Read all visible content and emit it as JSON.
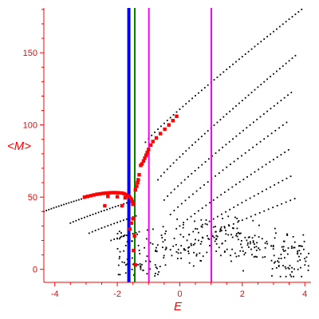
{
  "chart_data": {
    "type": "scatter",
    "xlabel": "E",
    "ylabel": "<M>",
    "xlim": [
      -4.35,
      4.2
    ],
    "ylim": [
      -9,
      181
    ],
    "xticks": [
      -4,
      -2,
      0,
      2,
      4
    ],
    "yticks": [
      0,
      50,
      100,
      150
    ],
    "tick_labels_x": [
      "-4",
      "-2",
      "0",
      "2",
      "4"
    ],
    "tick_labels_y": [
      "0",
      "50",
      "100",
      "150"
    ],
    "grid": false,
    "colors": {
      "axis": "#ff0000",
      "labels": "#ff0000",
      "black_points": "#000000",
      "red_points": "#ff0000",
      "line_blue": "#0000ff",
      "line_green": "#008000",
      "line_magenta": "#ff00ff"
    },
    "vertical_lines": [
      {
        "x": -1.63,
        "color": "#0000ff",
        "width": 4
      },
      {
        "x": -1.44,
        "color": "#008000",
        "width": 2
      },
      {
        "x": -0.99,
        "color": "#ff00ff",
        "width": 2
      },
      {
        "x": 1.01,
        "color": "#ff00ff",
        "width": 2
      }
    ],
    "black_branches": [
      {
        "x0": -4.35,
        "x1": -2.8,
        "y0": 40,
        "y1": 51,
        "step": 0.08
      },
      {
        "x0": -3.5,
        "x1": -1.7,
        "y0": 32,
        "y1": 46,
        "step": 0.09
      },
      {
        "x0": -2.9,
        "x1": -1.4,
        "y0": 25,
        "y1": 37,
        "step": 0.1
      },
      {
        "x0": -2.2,
        "x1": -1.3,
        "y0": 20,
        "y1": 26,
        "step": 0.1
      },
      {
        "x0": -1.1,
        "x1": 3.9,
        "y0": 88,
        "y1": 180,
        "step": 0.1
      },
      {
        "x0": -0.7,
        "x1": 3.7,
        "y0": 62,
        "y1": 148,
        "step": 0.1
      },
      {
        "x0": -0.5,
        "x1": 3.6,
        "y0": 48,
        "y1": 123,
        "step": 0.11
      },
      {
        "x0": -0.3,
        "x1": 3.5,
        "y0": 38,
        "y1": 103,
        "step": 0.12
      },
      {
        "x0": 0.0,
        "x1": 3.5,
        "y0": 30,
        "y1": 83,
        "step": 0.12
      },
      {
        "x0": 0.3,
        "x1": 3.6,
        "y0": 24,
        "y1": 65,
        "step": 0.13
      },
      {
        "x0": 0.6,
        "x1": 3.8,
        "y0": 20,
        "y1": 50,
        "step": 0.14
      }
    ],
    "black_cloud": {
      "x0": -2.0,
      "x1": 4.15,
      "y0": -5,
      "y1": 45,
      "count": 320,
      "seed": 7
    },
    "red_points": [
      {
        "x": -3.05,
        "y": 50
      },
      {
        "x": -2.95,
        "y": 50.5
      },
      {
        "x": -2.85,
        "y": 51
      },
      {
        "x": -2.75,
        "y": 51.5
      },
      {
        "x": -2.65,
        "y": 52
      },
      {
        "x": -2.55,
        "y": 52.3
      },
      {
        "x": -2.45,
        "y": 52.6
      },
      {
        "x": -2.35,
        "y": 52.8
      },
      {
        "x": -2.25,
        "y": 53
      },
      {
        "x": -2.15,
        "y": 53.1
      },
      {
        "x": -2.05,
        "y": 53.1
      },
      {
        "x": -1.95,
        "y": 53
      },
      {
        "x": -1.85,
        "y": 52.8
      },
      {
        "x": -1.78,
        "y": 52.4
      },
      {
        "x": -1.72,
        "y": 51.8
      },
      {
        "x": -1.66,
        "y": 51
      },
      {
        "x": -1.6,
        "y": 50
      },
      {
        "x": -1.55,
        "y": 48.6
      },
      {
        "x": -1.52,
        "y": 47
      },
      {
        "x": -1.5,
        "y": 45
      },
      {
        "x": -2.3,
        "y": 50.5
      },
      {
        "x": -2.0,
        "y": 50.3
      },
      {
        "x": -1.75,
        "y": 49.5
      },
      {
        "x": -2.4,
        "y": 44
      },
      {
        "x": -1.85,
        "y": 44
      },
      {
        "x": -1.42,
        "y": 55
      },
      {
        "x": -1.38,
        "y": 57.5
      },
      {
        "x": -1.35,
        "y": 60
      },
      {
        "x": -1.33,
        "y": 62
      },
      {
        "x": -1.3,
        "y": 65.5
      },
      {
        "x": -1.25,
        "y": 72
      },
      {
        "x": -1.21,
        "y": 73
      },
      {
        "x": -1.16,
        "y": 75
      },
      {
        "x": -1.12,
        "y": 77
      },
      {
        "x": -1.08,
        "y": 79
      },
      {
        "x": -1.04,
        "y": 81
      },
      {
        "x": -1.0,
        "y": 83
      },
      {
        "x": -0.93,
        "y": 86
      },
      {
        "x": -0.86,
        "y": 88.5
      },
      {
        "x": -0.75,
        "y": 91
      },
      {
        "x": -0.62,
        "y": 94
      },
      {
        "x": -0.48,
        "y": 97
      },
      {
        "x": -0.35,
        "y": 100
      },
      {
        "x": -0.22,
        "y": 103
      },
      {
        "x": -0.1,
        "y": 106
      },
      {
        "x": -1.6,
        "y": 28
      },
      {
        "x": -1.5,
        "y": 35
      },
      {
        "x": -1.45,
        "y": 23
      },
      {
        "x": -1.42,
        "y": 3
      },
      {
        "x": -1.48,
        "y": 13
      },
      {
        "x": -1.55,
        "y": 32
      }
    ]
  }
}
